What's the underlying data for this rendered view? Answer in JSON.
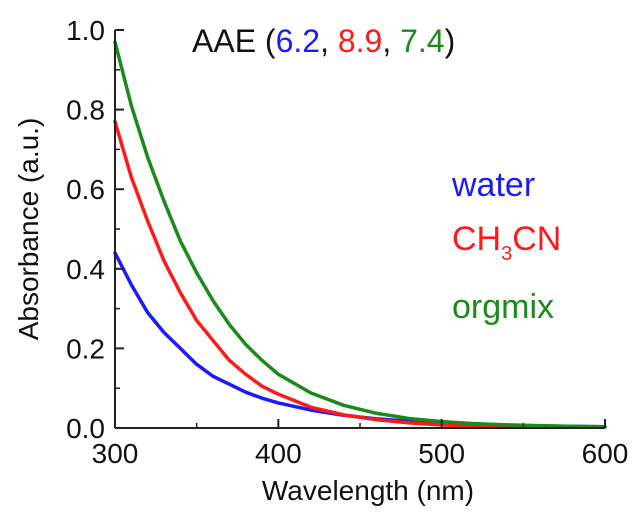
{
  "chart_data": {
    "type": "line",
    "title": "",
    "xlabel": "Wavelength (nm)",
    "ylabel": "Absorbance (a.u.)",
    "xlim": [
      300,
      600
    ],
    "ylim": [
      0.0,
      1.0
    ],
    "x_ticks": [
      "300",
      "400",
      "500",
      "600"
    ],
    "y_ticks": [
      "0.0",
      "0.2",
      "0.4",
      "0.6",
      "0.8",
      "1.0"
    ],
    "grid": false,
    "legend_placement": "right",
    "annotation": {
      "prefix": "AAE (",
      "values": [
        {
          "text": "6.2",
          "color": "#1a1aff"
        },
        {
          "text": "8.9",
          "color": "#ff1a1a"
        },
        {
          "text": "7.4",
          "color": "#1a8a1a"
        }
      ],
      "separator": ", ",
      "suffix": ")"
    },
    "series": [
      {
        "name": "water",
        "color": "#1a1aff",
        "x": [
          300,
          310,
          320,
          330,
          340,
          350,
          360,
          370,
          380,
          390,
          400,
          420,
          440,
          460,
          480,
          500,
          520,
          540,
          560,
          580,
          600
        ],
        "y": [
          0.44,
          0.36,
          0.29,
          0.24,
          0.2,
          0.16,
          0.13,
          0.11,
          0.09,
          0.075,
          0.063,
          0.045,
          0.032,
          0.023,
          0.017,
          0.012,
          0.009,
          0.007,
          0.005,
          0.004,
          0.003
        ]
      },
      {
        "name": "CH3CN",
        "name_parts": {
          "main1": "CH",
          "sub": "3",
          "main2": "CN"
        },
        "color": "#ff1a1a",
        "x": [
          300,
          310,
          320,
          330,
          340,
          350,
          360,
          370,
          380,
          390,
          400,
          420,
          440,
          460,
          480,
          500,
          520,
          540,
          560
        ],
        "y": [
          0.77,
          0.63,
          0.52,
          0.42,
          0.34,
          0.27,
          0.22,
          0.17,
          0.135,
          0.105,
          0.085,
          0.052,
          0.033,
          0.021,
          0.013,
          0.008,
          0.005,
          0.003,
          0.002
        ]
      },
      {
        "name": "orgmix",
        "color": "#1a8a1a",
        "x": [
          300,
          310,
          320,
          330,
          340,
          350,
          360,
          370,
          380,
          390,
          400,
          420,
          440,
          460,
          480,
          500,
          520,
          540,
          560,
          580,
          600
        ],
        "y": [
          0.97,
          0.81,
          0.68,
          0.57,
          0.47,
          0.39,
          0.32,
          0.26,
          0.21,
          0.17,
          0.135,
          0.088,
          0.057,
          0.037,
          0.024,
          0.016,
          0.011,
          0.008,
          0.006,
          0.004,
          0.003
        ]
      }
    ]
  }
}
